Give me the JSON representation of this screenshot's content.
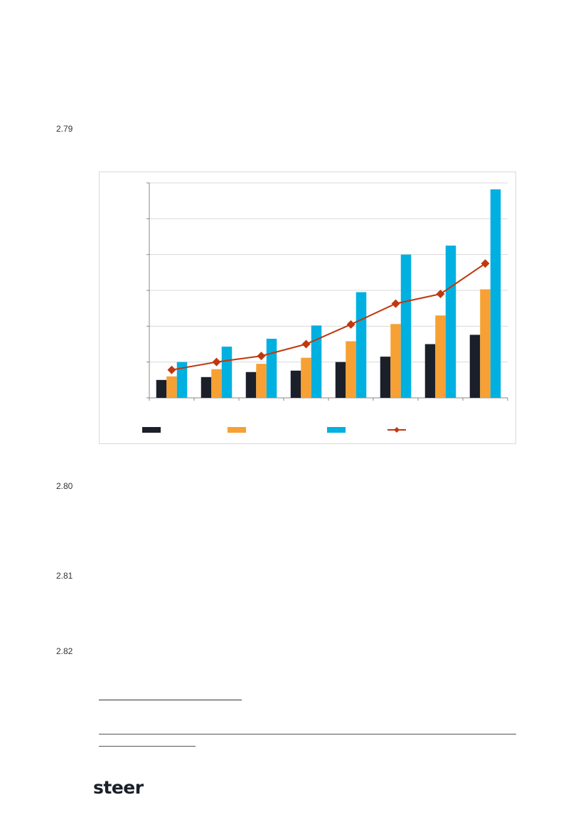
{
  "paragraphs": [
    {
      "number": "2.79"
    },
    {
      "number": "2.80"
    },
    {
      "number": "2.81"
    },
    {
      "number": "2.82"
    }
  ],
  "logo": {
    "text": "steer"
  },
  "chart_data": {
    "type": "bar",
    "categories": [
      "",
      "",
      "",
      "",
      "",
      "",
      "",
      ""
    ],
    "series": [
      {
        "type": "bar",
        "color": "#1b1f2a",
        "values": [
          0.5,
          0.58,
          0.72,
          0.76,
          1.0,
          1.15,
          1.5,
          1.76
        ]
      },
      {
        "type": "bar",
        "color": "#f7a034",
        "values": [
          0.6,
          0.8,
          0.95,
          1.12,
          1.58,
          2.06,
          2.3,
          3.03
        ]
      },
      {
        "type": "bar",
        "color": "#00b0e0",
        "values": [
          1.0,
          1.43,
          1.65,
          2.02,
          2.95,
          4.0,
          4.25,
          5.82
        ]
      },
      {
        "type": "line",
        "color": "#c0380f",
        "marker": "diamond",
        "values": [
          0.78,
          1.0,
          1.17,
          1.5,
          2.05,
          2.63,
          2.9,
          3.75
        ]
      }
    ],
    "ylim": [
      0,
      6
    ],
    "yticks": [
      0,
      1,
      2,
      3,
      4,
      5,
      6
    ],
    "grid": true,
    "legend": "bottom"
  }
}
